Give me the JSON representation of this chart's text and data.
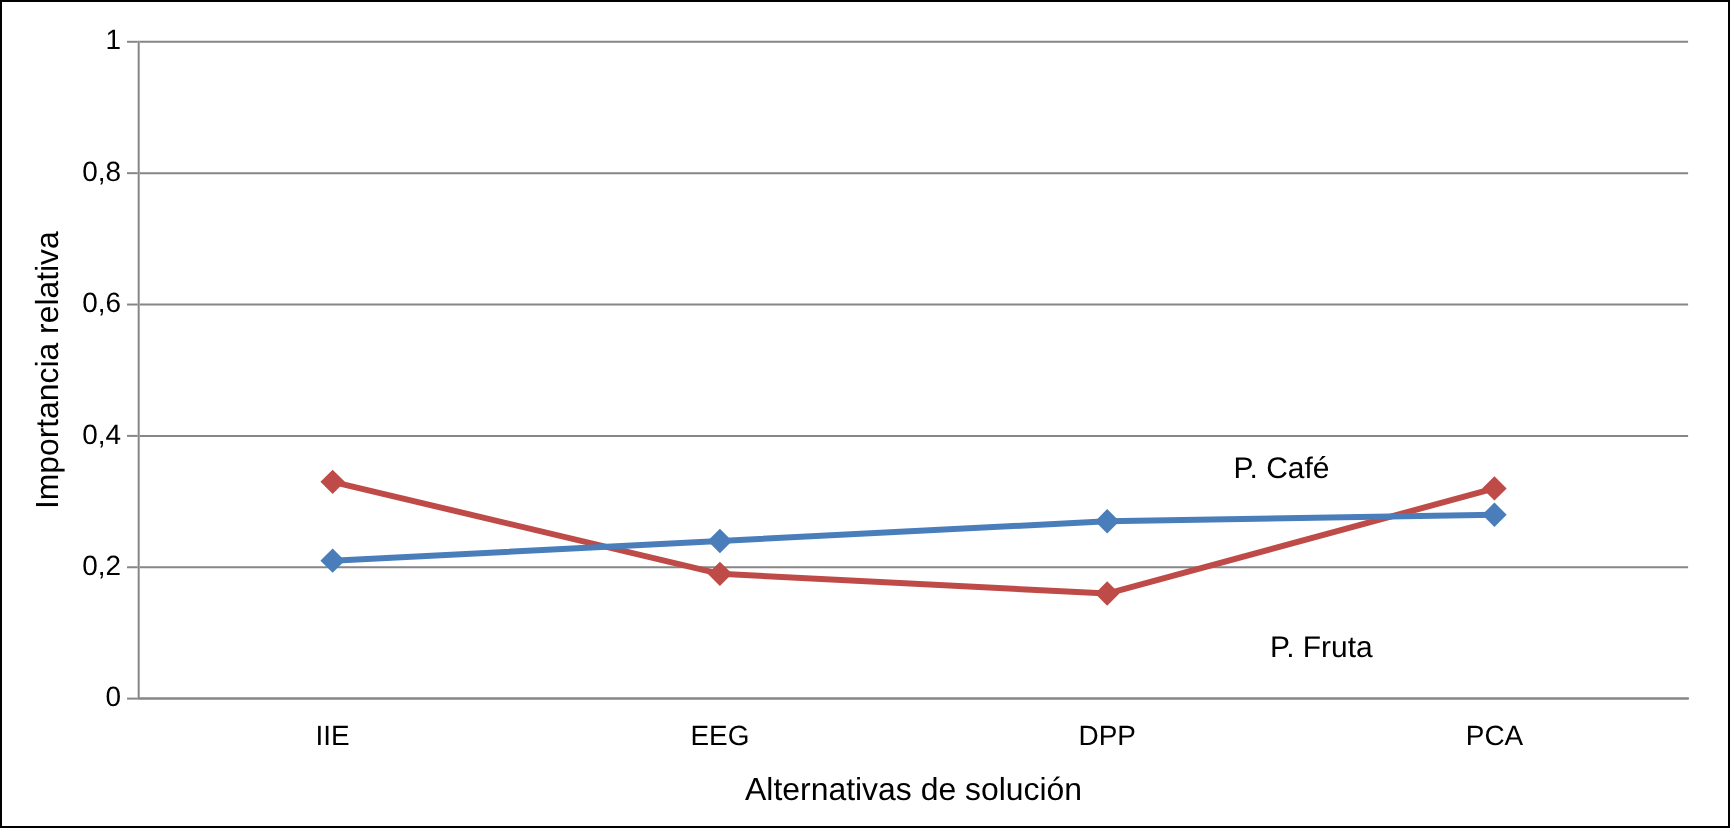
{
  "chart_data": {
    "type": "line",
    "xlabel": "Alternativas de solución",
    "ylabel": "Importancia relativa",
    "categories": [
      "IIE",
      "EEG",
      "DPP",
      "PCA"
    ],
    "series": [
      {
        "name": "P. Café",
        "color": "#4a7ebb",
        "values": [
          0.21,
          0.24,
          0.27,
          0.28
        ]
      },
      {
        "name": "P. Fruta",
        "color": "#be4b48",
        "values": [
          0.33,
          0.19,
          0.16,
          0.32
        ]
      }
    ],
    "ylim": [
      0,
      1
    ],
    "yticks": [
      0,
      {
        "value": 0.2,
        "label": "0,2"
      },
      {
        "value": 0.4,
        "label": "0,4"
      },
      {
        "value": 0.6,
        "label": "0,6"
      },
      {
        "value": 0.8,
        "label": "0,8"
      },
      1
    ],
    "grid": "y",
    "legend": false,
    "marker": "diamond",
    "line_style": "solid"
  }
}
